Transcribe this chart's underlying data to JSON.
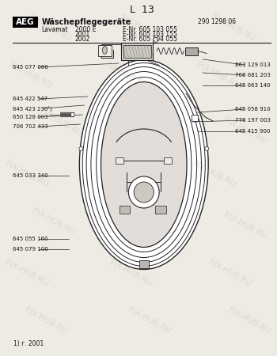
{
  "title": "L  13",
  "doc_number": "290 1298 06",
  "brand": "AEG",
  "brand_subtitle": "Wäschepflegegeräte",
  "model_label": "Lavamat",
  "models": [
    {
      "name": "2000 E",
      "enr": "E-Nr. 605 103 055"
    },
    {
      "name": "2001",
      "enr": "E-Nr. 605 103 155"
    },
    {
      "name": "2002",
      "enr": "E-Nr. 605 104 055"
    }
  ],
  "footer": "1) г. 2001",
  "watermark": "FIX-HUB.RU",
  "bg_color": "#eeebe5",
  "text_color": "#111111",
  "line_color": "#222222"
}
